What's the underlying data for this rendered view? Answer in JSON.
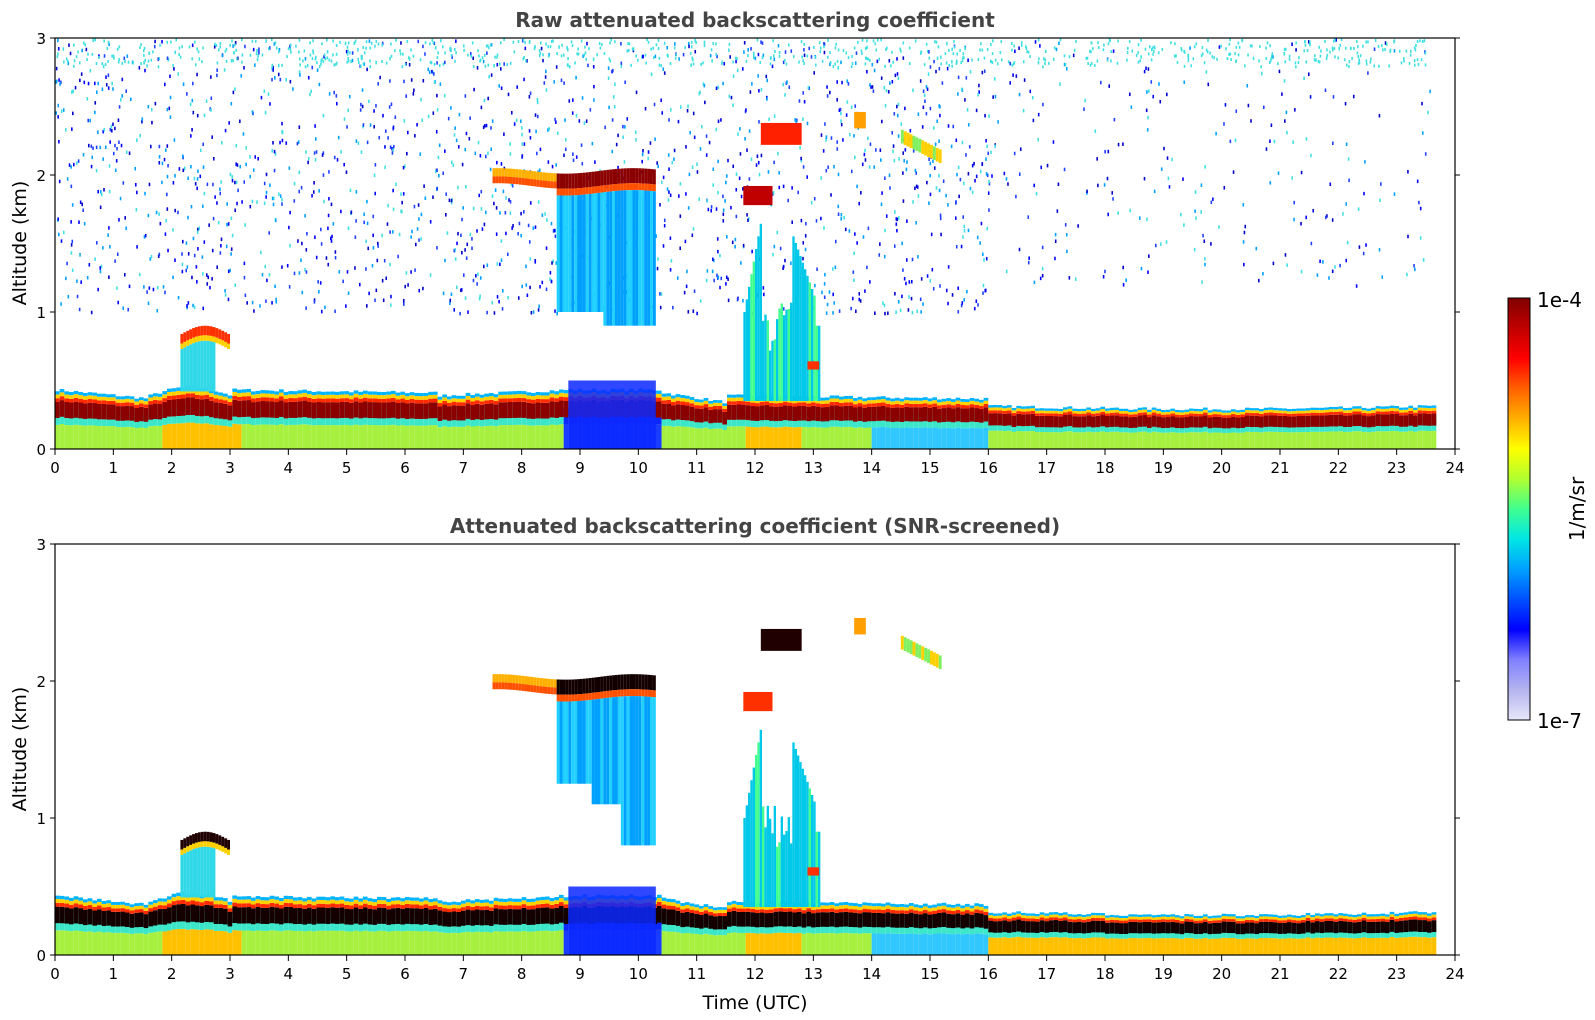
{
  "chart_data": [
    {
      "type": "heatmap",
      "title": "Raw attenuated backscattering coefficient",
      "xlabel": "",
      "ylabel": "Altitude (km)",
      "xlim": [
        0,
        24
      ],
      "ylim": [
        0,
        3
      ],
      "x_ticks": [
        "0",
        "1",
        "2",
        "3",
        "4",
        "5",
        "6",
        "7",
        "8",
        "9",
        "10",
        "11",
        "12",
        "13",
        "14",
        "15",
        "16",
        "17",
        "18",
        "19",
        "20",
        "21",
        "22",
        "23",
        "24"
      ],
      "y_ticks": [
        "0",
        "1",
        "2",
        "3"
      ],
      "data_end_time": 23.6,
      "features": [
        {
          "feature": "boundary-layer aerosol band",
          "time_start": 0,
          "time_end": 23.6,
          "altitude_top_km": 0.4
        },
        {
          "feature": "cloud",
          "time_start": 2.1,
          "time_end": 3.0,
          "altitude_km": 0.85
        },
        {
          "feature": "cloud layer",
          "time_start": 7.5,
          "time_end": 10.3,
          "altitude_km": 2.0
        },
        {
          "feature": "cloud",
          "time_start": 11.8,
          "time_end": 12.3,
          "altitude_km": 1.85
        },
        {
          "feature": "cloud",
          "time_start": 12.1,
          "time_end": 12.8,
          "altitude_km": 2.3
        },
        {
          "feature": "cloud",
          "time_start": 13.7,
          "time_end": 13.9,
          "altitude_km": 2.4
        },
        {
          "feature": "cloud",
          "time_start": 14.5,
          "time_end": 15.2,
          "altitude_km": 2.2
        },
        {
          "feature": "precipitation / virga",
          "time_start": 11.8,
          "time_end": 13.1,
          "altitude_top_km": 1.7
        }
      ],
      "background_noise": true
    },
    {
      "type": "heatmap",
      "title": "Attenuated backscattering coefficient (SNR-screened)",
      "xlabel": "Time (UTC)",
      "ylabel": "Altitude (km)",
      "xlim": [
        0,
        24
      ],
      "ylim": [
        0,
        3
      ],
      "x_ticks": [
        "0",
        "1",
        "2",
        "3",
        "4",
        "5",
        "6",
        "7",
        "8",
        "9",
        "10",
        "11",
        "12",
        "13",
        "14",
        "15",
        "16",
        "17",
        "18",
        "19",
        "20",
        "21",
        "22",
        "23",
        "24"
      ],
      "y_ticks": [
        "0",
        "1",
        "2",
        "3"
      ],
      "data_end_time": 23.6,
      "background_noise": false
    }
  ],
  "colorbar": {
    "max_label": "1e-4",
    "min_label": "1e-7",
    "unit_label": "1/m/sr",
    "colors": [
      "#e6e6fa",
      "#b4b4f0",
      "#8080ff",
      "#0000ff",
      "#0050ff",
      "#00a0ff",
      "#00e6e6",
      "#40ff90",
      "#b0ff30",
      "#ffff00",
      "#ffb000",
      "#ff6000",
      "#ff0000",
      "#c00000",
      "#800000"
    ]
  }
}
